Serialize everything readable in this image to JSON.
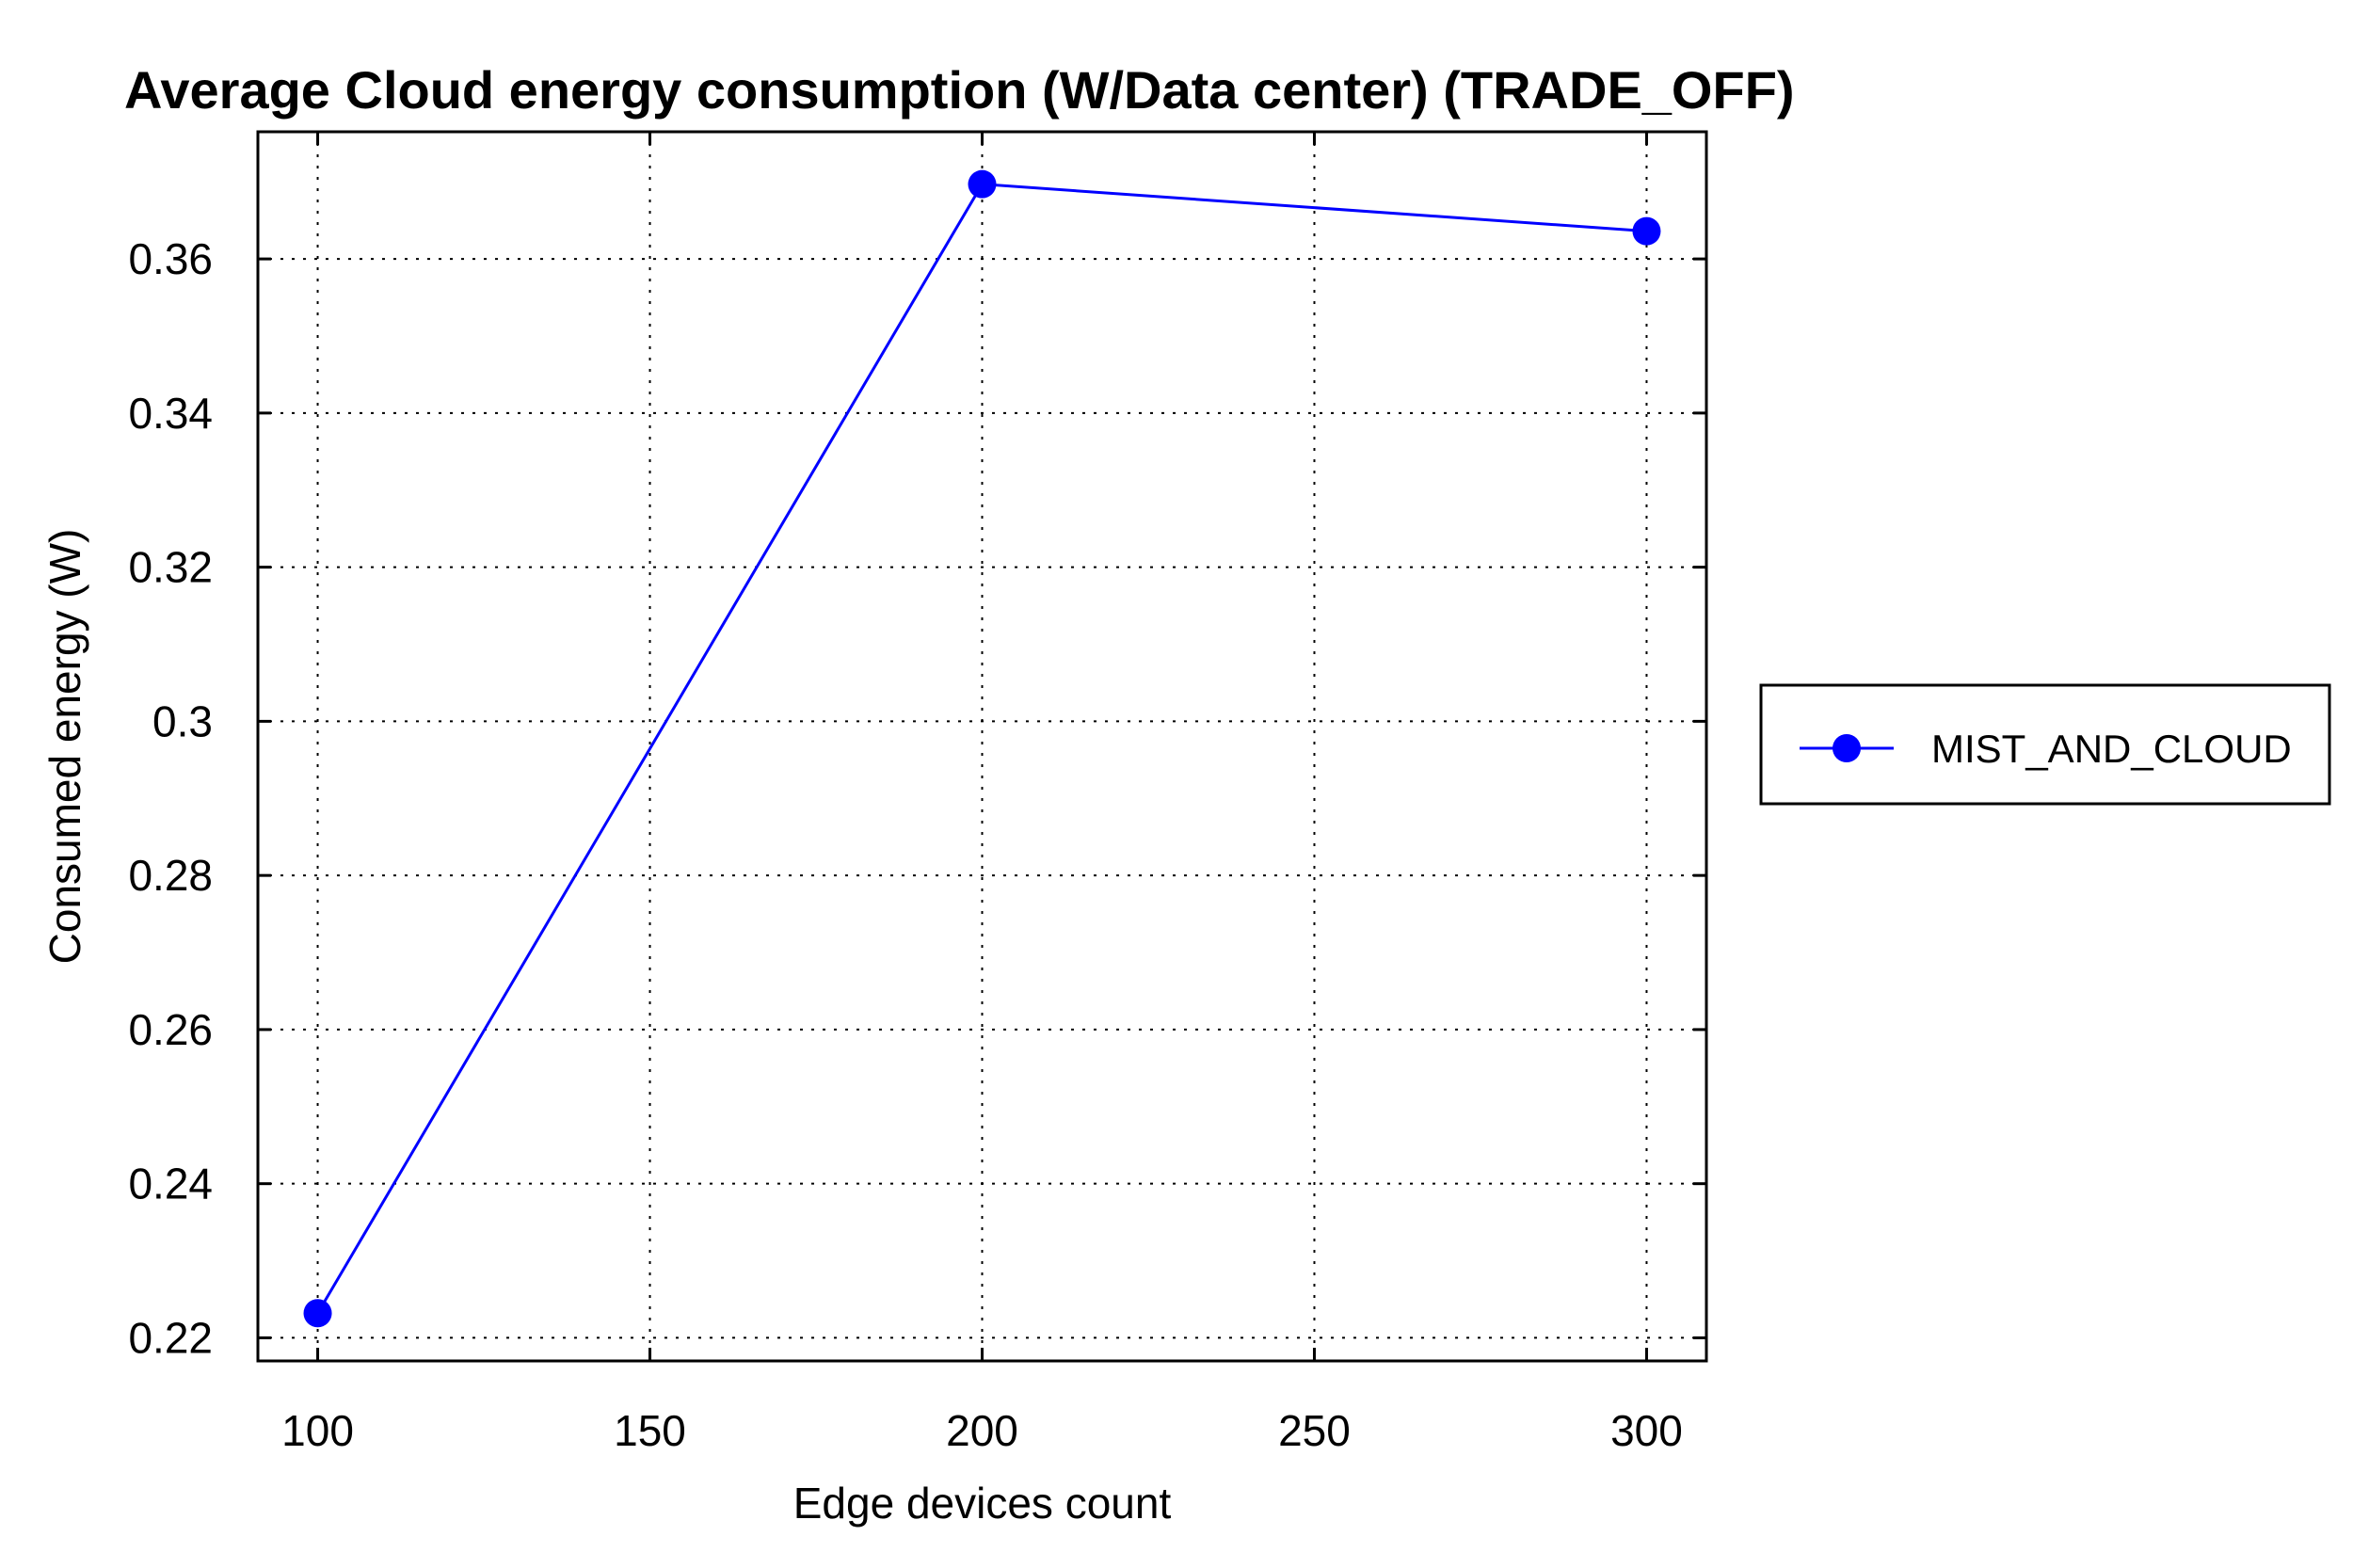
{
  "chart_data": {
    "type": "line",
    "title": "Average Cloud energy consumption (W/Data center) (TRADE_OFF)",
    "xlabel": "Edge devices count",
    "ylabel": "Consumed energy (W)",
    "xlim": [
      91,
      309
    ],
    "ylim": [
      0.217,
      0.3765
    ],
    "xticks": [
      100,
      150,
      200,
      250,
      300
    ],
    "xtick_labels": [
      "100",
      "150",
      "200",
      "250",
      "300"
    ],
    "yticks": [
      0.22,
      0.24,
      0.26,
      0.28,
      0.3,
      0.32,
      0.34,
      0.36
    ],
    "ytick_labels": [
      "0.22",
      "0.24",
      "0.26",
      "0.28",
      "0.3",
      "0.32",
      "0.34",
      "0.36"
    ],
    "grid": true,
    "legend_position": "right",
    "series": [
      {
        "name": "MIST_AND_CLOUD",
        "color": "#0000ff",
        "marker": "circle",
        "x": [
          100,
          200,
          300
        ],
        "y": [
          0.2232,
          0.3697,
          0.3636
        ]
      }
    ]
  }
}
